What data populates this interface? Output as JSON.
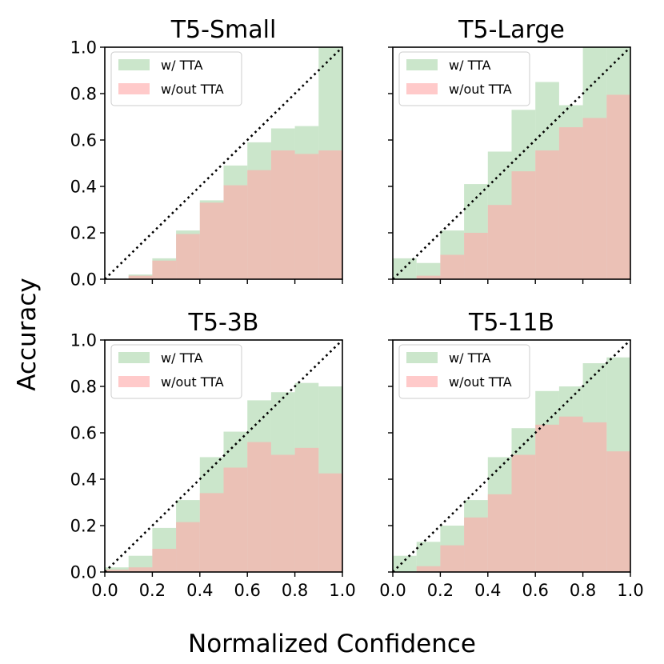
{
  "figure": {
    "xlabel": "Normalized Confidence",
    "ylabel": "Accuracy"
  },
  "colors": {
    "with_tta": "#a8d5a8",
    "without_tta": "#ffaaaa",
    "diagonal": "#000000",
    "axes": "#000000"
  },
  "chart_data": [
    {
      "type": "bar",
      "title": "T5-Small",
      "xlabel": "Normalized Confidence",
      "ylabel": "Accuracy",
      "xlim": [
        0,
        1
      ],
      "ylim": [
        0,
        1
      ],
      "bin_edges": [
        0.0,
        0.1,
        0.2,
        0.3,
        0.4,
        0.5,
        0.6,
        0.7,
        0.8,
        0.9,
        1.0
      ],
      "xticks": [
        "0.0",
        "0.2",
        "0.4",
        "0.6",
        "0.8",
        "1.0"
      ],
      "yticks": [
        "0.0",
        "0.2",
        "0.4",
        "0.6",
        "0.8",
        "1.0"
      ],
      "legend": [
        "w/ TTA",
        "w/out TTA"
      ],
      "legend_position": "top-left",
      "series": [
        {
          "name": "w/ TTA",
          "values": [
            0.0,
            0.02,
            0.09,
            0.21,
            0.34,
            0.49,
            0.59,
            0.65,
            0.66,
            1.0
          ]
        },
        {
          "name": "w/out TTA",
          "values": [
            0.0,
            0.015,
            0.08,
            0.195,
            0.33,
            0.405,
            0.47,
            0.555,
            0.54,
            0.555
          ]
        }
      ]
    },
    {
      "type": "bar",
      "title": "T5-Large",
      "xlabel": "Normalized Confidence",
      "ylabel": "Accuracy",
      "xlim": [
        0,
        1
      ],
      "ylim": [
        0,
        1
      ],
      "bin_edges": [
        0.0,
        0.1,
        0.2,
        0.3,
        0.4,
        0.5,
        0.6,
        0.7,
        0.8,
        0.9,
        1.0
      ],
      "xticks": [
        "0.0",
        "0.2",
        "0.4",
        "0.6",
        "0.8",
        "1.0"
      ],
      "yticks": [
        "0.0",
        "0.2",
        "0.4",
        "0.6",
        "0.8",
        "1.0"
      ],
      "legend": [
        "w/ TTA",
        "w/out TTA"
      ],
      "legend_position": "top-left",
      "series": [
        {
          "name": "w/ TTA",
          "values": [
            0.09,
            0.07,
            0.21,
            0.41,
            0.55,
            0.73,
            0.85,
            0.75,
            1.0,
            1.0
          ]
        },
        {
          "name": "w/out TTA",
          "values": [
            0.0,
            0.015,
            0.105,
            0.2,
            0.32,
            0.465,
            0.555,
            0.655,
            0.695,
            0.795
          ]
        }
      ]
    },
    {
      "type": "bar",
      "title": "T5-3B",
      "xlabel": "Normalized Confidence",
      "ylabel": "Accuracy",
      "xlim": [
        0,
        1
      ],
      "ylim": [
        0,
        1
      ],
      "bin_edges": [
        0.0,
        0.1,
        0.2,
        0.3,
        0.4,
        0.5,
        0.6,
        0.7,
        0.8,
        0.9,
        1.0
      ],
      "xticks": [
        "0.0",
        "0.2",
        "0.4",
        "0.6",
        "0.8",
        "1.0"
      ],
      "yticks": [
        "0.0",
        "0.2",
        "0.4",
        "0.6",
        "0.8",
        "1.0"
      ],
      "legend": [
        "w/ TTA",
        "w/out TTA"
      ],
      "legend_position": "top-left",
      "series": [
        {
          "name": "w/ TTA",
          "values": [
            0.02,
            0.07,
            0.19,
            0.31,
            0.495,
            0.605,
            0.74,
            0.775,
            0.815,
            0.8
          ]
        },
        {
          "name": "w/out TTA",
          "values": [
            0.01,
            0.02,
            0.1,
            0.215,
            0.34,
            0.45,
            0.56,
            0.505,
            0.535,
            0.425
          ]
        }
      ]
    },
    {
      "type": "bar",
      "title": "T5-11B",
      "xlabel": "Normalized Confidence",
      "ylabel": "Accuracy",
      "xlim": [
        0,
        1
      ],
      "ylim": [
        0,
        1
      ],
      "bin_edges": [
        0.0,
        0.1,
        0.2,
        0.3,
        0.4,
        0.5,
        0.6,
        0.7,
        0.8,
        0.9,
        1.0
      ],
      "xticks": [
        "0.0",
        "0.2",
        "0.4",
        "0.6",
        "0.8",
        "1.0"
      ],
      "yticks": [
        "0.0",
        "0.2",
        "0.4",
        "0.6",
        "0.8",
        "1.0"
      ],
      "legend": [
        "w/ TTA",
        "w/out TTA"
      ],
      "legend_position": "top-left",
      "series": [
        {
          "name": "w/ TTA",
          "values": [
            0.07,
            0.13,
            0.2,
            0.31,
            0.495,
            0.62,
            0.78,
            0.8,
            0.9,
            0.925
          ]
        },
        {
          "name": "w/out TTA",
          "values": [
            0.0,
            0.025,
            0.115,
            0.235,
            0.335,
            0.505,
            0.635,
            0.67,
            0.645,
            0.52
          ]
        }
      ]
    }
  ]
}
